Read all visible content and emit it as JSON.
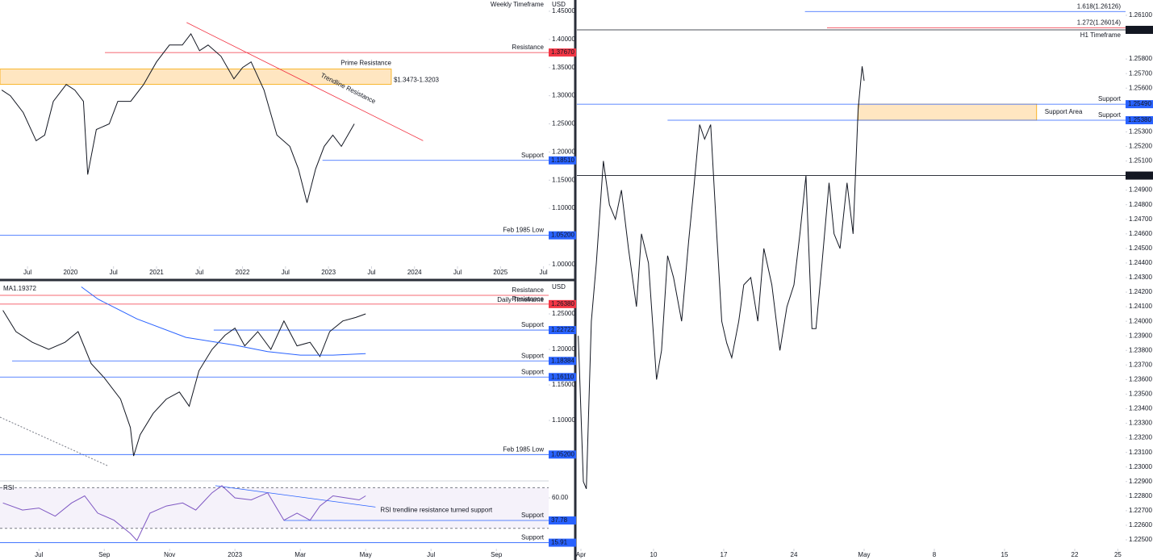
{
  "chart_data": [
    {
      "type": "line",
      "title": "Weekly Timeframe",
      "unit": "USD",
      "xlim": [
        2019.18,
        2025.56
      ],
      "ylim": [
        0.997,
        1.47
      ],
      "xticks": [
        {
          "value": 2019.5,
          "label": "Jul"
        },
        {
          "value": 2020.0,
          "label": "2020"
        },
        {
          "value": 2020.5,
          "label": "Jul"
        },
        {
          "value": 2021.0,
          "label": "2021"
        },
        {
          "value": 2021.5,
          "label": "Jul"
        },
        {
          "value": 2022.0,
          "label": "2022"
        },
        {
          "value": 2022.5,
          "label": "Jul"
        },
        {
          "value": 2023.0,
          "label": "2023"
        },
        {
          "value": 2023.5,
          "label": "Jul"
        },
        {
          "value": 2024.0,
          "label": "2024"
        },
        {
          "value": 2024.5,
          "label": "Jul"
        },
        {
          "value": 2025.0,
          "label": "2025"
        },
        {
          "value": 2025.5,
          "label": "Jul"
        }
      ],
      "yticks": [
        {
          "value": 1.45,
          "label": "1.45000"
        },
        {
          "value": 1.4,
          "label": "1.40000"
        },
        {
          "value": 1.35,
          "label": "1.35000"
        },
        {
          "value": 1.3,
          "label": "1.30000"
        },
        {
          "value": 1.25,
          "label": "1.25000"
        },
        {
          "value": 1.2,
          "label": "1.20000"
        },
        {
          "value": 1.15,
          "label": "1.15000"
        },
        {
          "value": 1.1,
          "label": "1.10000"
        },
        {
          "value": 1.0,
          "label": "1.00000"
        }
      ],
      "series": [
        {
          "color": "#131722",
          "x": [
            2019.2,
            2019.3,
            2019.45,
            2019.6,
            2019.7,
            2019.8,
            2019.95,
            2020.05,
            2020.15,
            2020.2,
            2020.3,
            2020.45,
            2020.55,
            2020.7,
            2020.85,
            2021.0,
            2021.15,
            2021.3,
            2021.4,
            2021.5,
            2021.6,
            2021.75,
            2021.9,
            2022.0,
            2022.1,
            2022.25,
            2022.4,
            2022.55,
            2022.65,
            2022.75,
            2022.85,
            2022.95,
            2023.05,
            2023.15,
            2023.3
          ],
          "values": [
            1.31,
            1.3,
            1.27,
            1.22,
            1.23,
            1.29,
            1.32,
            1.31,
            1.29,
            1.16,
            1.24,
            1.25,
            1.29,
            1.29,
            1.32,
            1.36,
            1.39,
            1.39,
            1.41,
            1.38,
            1.39,
            1.37,
            1.33,
            1.35,
            1.36,
            1.31,
            1.23,
            1.21,
            1.17,
            1.11,
            1.17,
            1.21,
            1.23,
            1.21,
            1.25
          ]
        }
      ],
      "zones": [
        {
          "label": "Prime Resistance",
          "range_label": "$1.3473-1.3203",
          "low": 1.3203,
          "high": 1.3473,
          "x": [
            2019.18,
            2023.73
          ],
          "color": "#f23645"
        }
      ],
      "levels": [
        {
          "label": "Resistance",
          "value": 1.3767,
          "tag": "1.37670",
          "x0": 2020.4,
          "color": "#f23645"
        },
        {
          "label": "Support",
          "value": 1.1851,
          "tag": "1.18510",
          "x0": 2022.93,
          "color": "#2962ff"
        },
        {
          "label": "Feb 1985 Low",
          "value": 1.052,
          "tag": "1.05200",
          "x0": 2019.18,
          "color": "#2962ff"
        }
      ],
      "trendlines": [
        {
          "text": "Trendline Resistance",
          "x": [
            2021.35,
            2024.1
          ],
          "y": [
            1.43,
            1.22
          ],
          "color": "#f23645"
        }
      ]
    },
    {
      "type": "line",
      "title": "Daily Timeframe",
      "unit": "USD",
      "ma_value": 1.19372,
      "xlim": [
        4.81,
        21.6
      ],
      "ylim": [
        1.016,
        1.2943
      ],
      "yticks": [
        {
          "value": 1.25,
          "label": "1.25000"
        },
        {
          "value": 1.2,
          "label": "1.20000"
        },
        {
          "value": 1.15,
          "label": "1.15000"
        },
        {
          "value": 1.1,
          "label": "1.10000"
        }
      ],
      "series": [
        {
          "color": "#131722",
          "x": [
            4.9,
            5.3,
            5.8,
            6.3,
            6.8,
            7.2,
            7.6,
            8.0,
            8.5,
            8.8,
            8.9,
            9.1,
            9.5,
            9.9,
            10.3,
            10.6,
            10.9,
            11.3,
            11.7,
            12.0,
            12.3,
            12.7,
            13.1,
            13.5,
            13.9,
            14.3,
            14.6,
            14.9,
            15.3,
            15.7,
            16.0
          ],
          "values": [
            1.255,
            1.225,
            1.21,
            1.2,
            1.21,
            1.225,
            1.18,
            1.16,
            1.13,
            1.09,
            1.05,
            1.08,
            1.11,
            1.13,
            1.14,
            1.12,
            1.17,
            1.2,
            1.22,
            1.23,
            1.205,
            1.225,
            1.2,
            1.24,
            1.205,
            1.21,
            1.19,
            1.225,
            1.24,
            1.245,
            1.25
          ]
        },
        {
          "name": "MA",
          "color": "#2962ff",
          "x": [
            7.3,
            7.8,
            9.0,
            10.5,
            12.0,
            13.0,
            14.0,
            15.0,
            16.0
          ],
          "values": [
            1.288,
            1.271,
            1.243,
            1.217,
            1.206,
            1.197,
            1.192,
            1.192,
            1.194
          ]
        }
      ],
      "levels": [
        {
          "label": "Resistance",
          "value": 1.2761,
          "x0": 4.81,
          "color": "#f23645"
        },
        {
          "label": "Resistance",
          "value": 1.2638,
          "tag": "1.26380",
          "x0": 4.81,
          "color": "#f23645"
        },
        {
          "label": "Support",
          "value": 1.22722,
          "tag": "1.22722",
          "x0": 11.35,
          "color": "#2962ff"
        },
        {
          "label": "Support",
          "value": 1.18384,
          "tag": "1.18384",
          "x0": 5.18,
          "color": "#2962ff"
        },
        {
          "label": "Support",
          "value": 1.1611,
          "tag": "1.16110",
          "x0": 4.81,
          "color": "#2962ff"
        },
        {
          "label": "Feb 1985 Low",
          "value": 1.052,
          "tag": "1.05200",
          "x0": 4.81,
          "color": "#2962ff"
        }
      ]
    },
    {
      "type": "line",
      "xlim": [
        4.81,
        21.6
      ],
      "ylim": [
        10,
        75.9
      ],
      "band": [
        30,
        70
      ],
      "xticks": [
        {
          "value": 6,
          "label": "Jul"
        },
        {
          "value": 8,
          "label": "Sep"
        },
        {
          "value": 10,
          "label": "Nov"
        },
        {
          "value": 12,
          "label": "2023"
        },
        {
          "value": 14,
          "label": "Mar"
        },
        {
          "value": 16,
          "label": "May"
        },
        {
          "value": 18,
          "label": "Jul"
        },
        {
          "value": 20,
          "label": "Sep"
        }
      ],
      "yticks": [
        {
          "value": 60,
          "label": "60.00"
        }
      ],
      "series": [
        {
          "name": "RSI",
          "color": "#7e57c2",
          "x": [
            4.9,
            5.5,
            6.0,
            6.5,
            7.0,
            7.4,
            7.8,
            8.3,
            8.8,
            9.0,
            9.4,
            9.9,
            10.4,
            10.8,
            11.3,
            11.6,
            12.0,
            12.5,
            13.0,
            13.5,
            13.9,
            14.3,
            14.6,
            15.0,
            15.4,
            15.8,
            16.0
          ],
          "values": [
            55,
            48,
            50,
            42,
            55,
            62,
            45,
            38,
            25,
            18,
            45,
            52,
            55,
            48,
            65,
            72,
            60,
            58,
            65,
            38,
            45,
            38,
            52,
            62,
            60,
            58,
            62
          ]
        }
      ],
      "levels": [
        {
          "label": "Support",
          "value": 37.78,
          "tag": "37.78",
          "x0": 13.5,
          "color": "#2962ff"
        },
        {
          "label": "Support",
          "value": 15.91,
          "tag": "15.91",
          "x0": 4.81,
          "color": "#2962ff"
        }
      ],
      "trendlines": [
        {
          "text": "RSI trendline resistance turned support",
          "x": [
            11.4,
            16.3
          ],
          "y": [
            72,
            51
          ],
          "color": "#2962ff"
        }
      ]
    },
    {
      "type": "line",
      "title": "H1 Timeframe",
      "xlim": [
        2.36,
        57.07
      ],
      "ylim": [
        1.22439,
        1.26205
      ],
      "xticks": [
        {
          "value": 2.76,
          "label": "Apr"
        },
        {
          "value": 10,
          "label": "10"
        },
        {
          "value": 17,
          "label": "17"
        },
        {
          "value": 24,
          "label": "24"
        },
        {
          "value": 31,
          "label": "May"
        },
        {
          "value": 38,
          "label": "8"
        },
        {
          "value": 45,
          "label": "15"
        },
        {
          "value": 52,
          "label": "22"
        },
        {
          "value": 56.3,
          "label": "25"
        }
      ],
      "yticks": [
        {
          "value": 1.261,
          "label": "1.26100"
        },
        {
          "value": 1.258,
          "label": "1.25800"
        },
        {
          "value": 1.257,
          "label": "1.25700"
        },
        {
          "value": 1.256,
          "label": "1.25600"
        },
        {
          "value": 1.253,
          "label": "1.25300"
        },
        {
          "value": 1.252,
          "label": "1.25200"
        },
        {
          "value": 1.251,
          "label": "1.25100"
        },
        {
          "value": 1.249,
          "label": "1.24900"
        },
        {
          "value": 1.248,
          "label": "1.24800"
        },
        {
          "value": 1.247,
          "label": "1.24700"
        },
        {
          "value": 1.246,
          "label": "1.24600"
        },
        {
          "value": 1.245,
          "label": "1.24500"
        },
        {
          "value": 1.244,
          "label": "1.24400"
        },
        {
          "value": 1.243,
          "label": "1.24300"
        },
        {
          "value": 1.242,
          "label": "1.24200"
        },
        {
          "value": 1.241,
          "label": "1.24100"
        },
        {
          "value": 1.24,
          "label": "1.24000"
        },
        {
          "value": 1.239,
          "label": "1.23900"
        },
        {
          "value": 1.238,
          "label": "1.23800"
        },
        {
          "value": 1.237,
          "label": "1.23700"
        },
        {
          "value": 1.236,
          "label": "1.23600"
        },
        {
          "value": 1.235,
          "label": "1.23500"
        },
        {
          "value": 1.234,
          "label": "1.23400"
        },
        {
          "value": 1.233,
          "label": "1.23300"
        },
        {
          "value": 1.232,
          "label": "1.23200"
        },
        {
          "value": 1.231,
          "label": "1.23100"
        },
        {
          "value": 1.23,
          "label": "1.23000"
        },
        {
          "value": 1.229,
          "label": "1.22900"
        },
        {
          "value": 1.228,
          "label": "1.22800"
        },
        {
          "value": 1.227,
          "label": "1.22700"
        },
        {
          "value": 1.226,
          "label": "1.22600"
        },
        {
          "value": 1.225,
          "label": "1.22500"
        }
      ],
      "series": [
        {
          "color": "#131722",
          "x": [
            2.5,
            3.0,
            3.3,
            3.8,
            4.3,
            5.0,
            5.6,
            6.2,
            6.8,
            7.5,
            8.3,
            8.8,
            9.5,
            10.3,
            10.8,
            11.4,
            12.0,
            12.8,
            13.5,
            14.0,
            14.6,
            15.1,
            15.7,
            16.3,
            16.8,
            17.3,
            17.8,
            18.5,
            19.0,
            19.7,
            20.4,
            21.0,
            21.8,
            22.6,
            23.3,
            24.0,
            24.6,
            25.2,
            25.8,
            26.2,
            26.8,
            27.5,
            28.0,
            28.6,
            29.3,
            29.9,
            30.4,
            30.8,
            31.0
          ],
          "values": [
            1.239,
            1.229,
            1.2285,
            1.24,
            1.244,
            1.251,
            1.248,
            1.247,
            1.249,
            1.245,
            1.241,
            1.246,
            1.244,
            1.236,
            1.238,
            1.2445,
            1.243,
            1.24,
            1.2455,
            1.249,
            1.2535,
            1.2525,
            1.2535,
            1.246,
            1.24,
            1.2385,
            1.2375,
            1.24,
            1.2425,
            1.243,
            1.24,
            1.245,
            1.2425,
            1.238,
            1.241,
            1.2425,
            1.246,
            1.25,
            1.2395,
            1.2395,
            1.244,
            1.2495,
            1.246,
            1.245,
            1.2495,
            1.246,
            1.2545,
            1.2575,
            1.2565
          ]
        }
      ],
      "zones": [
        {
          "label": "Support Area",
          "low": 1.2538,
          "high": 1.2549,
          "x": [
            30.4,
            48.2
          ],
          "color": "#2962ff"
        }
      ],
      "levels": [
        {
          "label": "1.618(1.26126)",
          "value": 1.26126,
          "x0": 25.1,
          "color": "#2962ff"
        },
        {
          "label": "1.272(1.26014)",
          "value": 1.26014,
          "x0": 27.3,
          "color": "#f23645"
        },
        {
          "value": 1.26,
          "tag": "1.26000",
          "x0": 2.36,
          "color": "#131722"
        },
        {
          "label": "Support",
          "value": 1.2549,
          "tag": "1.25490",
          "x0": 2.36,
          "color": "#2962ff"
        },
        {
          "label": "Support",
          "value": 1.2538,
          "tag": "1.25380",
          "x0": 11.4,
          "color": "#2962ff"
        },
        {
          "value": 1.25,
          "tag": "1.25000",
          "x0": 2.36,
          "color": "#131722"
        }
      ]
    }
  ]
}
